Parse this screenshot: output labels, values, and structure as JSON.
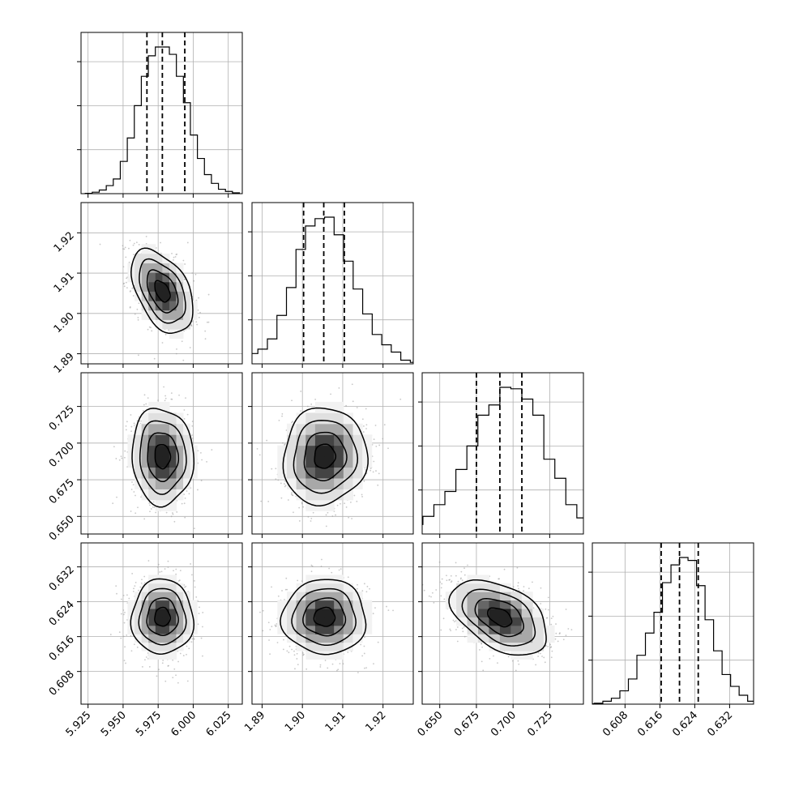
{
  "chart_data": {
    "type": "corner",
    "grid": true,
    "quantile_lines": "dashed",
    "parameters": [
      {
        "ticks": [
          "5.925",
          "5.950",
          "5.975",
          "6.000",
          "6.025"
        ],
        "tick_values": [
          5.925,
          5.95,
          5.975,
          6.0,
          6.025
        ],
        "range": [
          5.92,
          6.035
        ],
        "mean": 5.978,
        "sd": 0.011,
        "quantiles": [
          5.967,
          5.978,
          5.994
        ]
      },
      {
        "ticks": [
          "1.89",
          "1.90",
          "1.91",
          "1.92"
        ],
        "tick_values": [
          1.89,
          1.9,
          1.91,
          1.92
        ],
        "range": [
          1.8875,
          1.9275
        ],
        "mean": 1.9055,
        "sd": 0.0052,
        "quantiles": [
          1.9003,
          1.9053,
          1.9104
        ]
      },
      {
        "ticks": [
          "0.650",
          "0.675",
          "0.700",
          "0.725"
        ],
        "tick_values": [
          0.65,
          0.675,
          0.7,
          0.725
        ],
        "range": [
          0.638,
          0.748
        ],
        "mean": 0.691,
        "sd": 0.0165,
        "quantiles": [
          0.675,
          0.691,
          0.706
        ]
      },
      {
        "ticks": [
          "0.608",
          "0.616",
          "0.624",
          "0.632"
        ],
        "tick_values": [
          0.608,
          0.616,
          0.624,
          0.632
        ],
        "range": [
          0.6005,
          0.6375
        ],
        "mean": 0.6205,
        "sd": 0.0043,
        "quantiles": [
          0.6163,
          0.6205,
          0.6248
        ]
      }
    ],
    "histograms": [
      {
        "param": 0,
        "counts": [
          0.2,
          1,
          2.5,
          5.5,
          10,
          22,
          38,
          60,
          80,
          94,
          100,
          100,
          95,
          80,
          62,
          40,
          24,
          13,
          7,
          3,
          1.5,
          0.6
        ]
      },
      {
        "param": 1,
        "counts": [
          0.4,
          1.5,
          3.5,
          7,
          10,
          17,
          33,
          52,
          78,
          94,
          99,
          100,
          88,
          70,
          51,
          34,
          20,
          13,
          8,
          2.5,
          1,
          0.3
        ]
      },
      {
        "param": 2,
        "counts": [
          0.8,
          1.5,
          3,
          6.5,
          12,
          20,
          29,
          44,
          60,
          81,
          88,
          100,
          99,
          92,
          81,
          51,
          38,
          20,
          11,
          5.5,
          1.5,
          0.4
        ]
      },
      {
        "param": 3,
        "counts": [
          0.3,
          0.6,
          2,
          4,
          9,
          17,
          33,
          48,
          62,
          82,
          94,
          99,
          97,
          80,
          57,
          36,
          20,
          12,
          6,
          2,
          0.7,
          0.2
        ]
      }
    ],
    "panels_2d": [
      {
        "x_param": 0,
        "y_param": 1,
        "corr": -0.45
      },
      {
        "x_param": 0,
        "y_param": 2,
        "corr": -0.05
      },
      {
        "x_param": 1,
        "y_param": 2,
        "corr": 0.05
      },
      {
        "x_param": 0,
        "y_param": 3,
        "corr": 0.0
      },
      {
        "x_param": 1,
        "y_param": 3,
        "corr": 0.0
      },
      {
        "x_param": 2,
        "y_param": 3,
        "corr": -0.45
      }
    ]
  }
}
